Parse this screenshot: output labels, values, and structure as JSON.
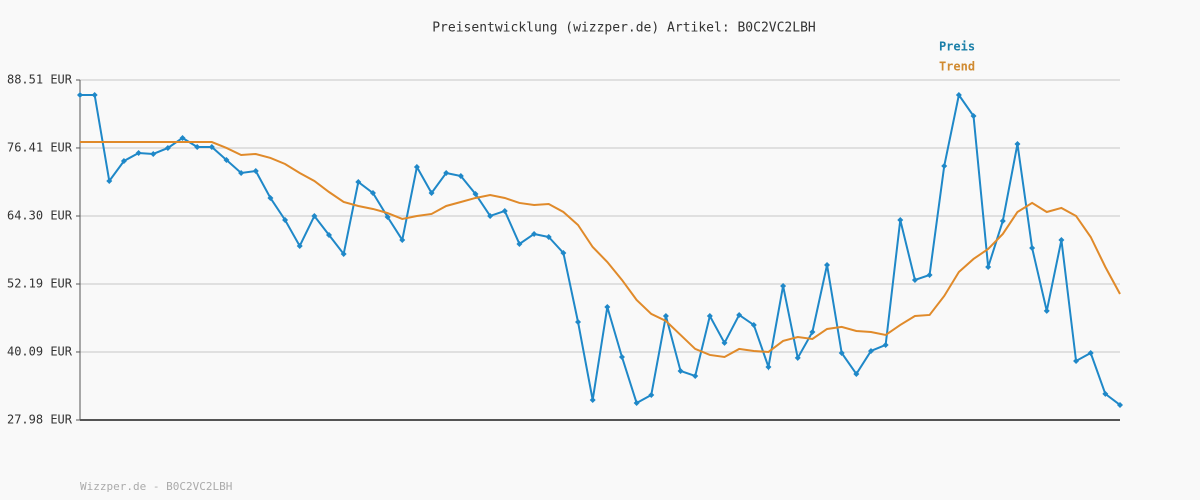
{
  "chart_data": {
    "type": "line",
    "title": "Preisentwicklung (wizzper.de) Artikel: B0C2VC2LBH",
    "footer": "Wizzper.de - B0C2VC2LBH",
    "categories": [
      null,
      null,
      null,
      null,
      null,
      null,
      null,
      null,
      null,
      null,
      null,
      null,
      null,
      null,
      null,
      null,
      null,
      null,
      null,
      null,
      null,
      null,
      null,
      null,
      null,
      null,
      null,
      null,
      null,
      null,
      null,
      null,
      null,
      null,
      null,
      null,
      null,
      null,
      null,
      null,
      null,
      null,
      null,
      null,
      null,
      null,
      null,
      null,
      null,
      null,
      null,
      null,
      null,
      null,
      null,
      null,
      null,
      null,
      null,
      null,
      null,
      null,
      null,
      null,
      null,
      null,
      null,
      null,
      null,
      null,
      null,
      null
    ],
    "series": [
      {
        "name": "Preis",
        "color": "#1f88c8",
        "legend_color": "#1a7fa8",
        "markers": true,
        "values": [
          85.84,
          85.84,
          70.53,
          74.09,
          75.52,
          75.34,
          76.41,
          78.19,
          76.59,
          76.59,
          74.27,
          71.96,
          72.31,
          67.51,
          63.59,
          58.96,
          64.3,
          60.92,
          57.54,
          70.35,
          68.39,
          64.12,
          60.03,
          73.02,
          68.39,
          71.96,
          71.42,
          68.22,
          64.3,
          65.19,
          59.32,
          61.1,
          60.56,
          57.72,
          45.43,
          31.55,
          48.1,
          39.2,
          31.01,
          32.44,
          46.5,
          36.71,
          35.82,
          46.5,
          41.7,
          46.68,
          44.9,
          37.42,
          51.84,
          39.03,
          43.65,
          55.58,
          39.91,
          36.18,
          40.27,
          41.34,
          63.59,
          52.91,
          53.8,
          73.2,
          85.84,
          82.1,
          55.22,
          63.41,
          77.12,
          58.61,
          47.4,
          60.03,
          38.49,
          39.91,
          32.62,
          30.66
        ]
      },
      {
        "name": "Trend",
        "color": "#e08a2a",
        "legend_color": "#d08a30",
        "markers": false,
        "values": [
          77.47,
          77.47,
          77.47,
          77.47,
          77.47,
          77.47,
          77.47,
          77.47,
          77.47,
          77.47,
          76.41,
          75.16,
          75.34,
          74.63,
          73.56,
          71.96,
          70.53,
          68.57,
          66.79,
          66.08,
          65.55,
          64.83,
          63.77,
          64.3,
          64.66,
          66.08,
          66.79,
          67.51,
          68.04,
          67.51,
          66.62,
          66.26,
          66.44,
          65.01,
          62.7,
          58.78,
          56.11,
          52.91,
          49.35,
          46.86,
          45.61,
          43.12,
          40.63,
          39.56,
          39.2,
          40.63,
          40.27,
          40.09,
          42.05,
          42.76,
          42.41,
          44.19,
          44.55,
          43.83,
          43.65,
          43.12,
          44.9,
          46.5,
          46.68,
          50.06,
          54.33,
          56.65,
          58.43,
          61.1,
          65.01,
          66.62,
          65.01,
          65.73,
          64.3,
          60.56,
          55.22,
          50.41
        ]
      }
    ],
    "ylim": [
      27.98,
      88.51
    ],
    "yticks": [
      {
        "value": 27.98,
        "label": "27.98 EUR"
      },
      {
        "value": 40.09,
        "label": "40.09 EUR"
      },
      {
        "value": 52.19,
        "label": "52.19 EUR"
      },
      {
        "value": 64.3,
        "label": "64.30 EUR"
      },
      {
        "value": 76.41,
        "label": "76.41 EUR"
      },
      {
        "value": 88.51,
        "label": "88.51 EUR"
      }
    ],
    "grid": true,
    "legend": "top-right"
  }
}
